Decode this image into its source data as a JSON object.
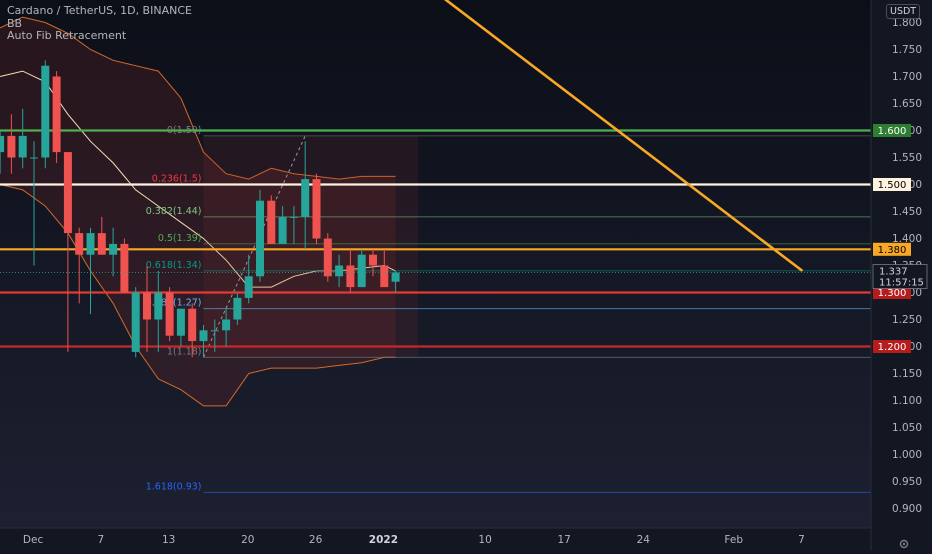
{
  "header": {
    "symbol_line": "Cardano / TetherUS, 1D, BINANCE",
    "indicator1": "BB",
    "indicator2": "Auto Fib Retracement"
  },
  "price_axis": {
    "unit": "USDT",
    "ticks": [
      "1.800",
      "1.750",
      "1.700",
      "1.650",
      "1.600",
      "1.550",
      "1.500",
      "1.450",
      "1.400",
      "1.350",
      "1.300",
      "1.250",
      "1.200",
      "1.150",
      "1.100",
      "1.050",
      "1.000",
      "0.950",
      "0.900"
    ]
  },
  "badges": [
    {
      "id": "b1600",
      "value": 1.6,
      "label": "1.600",
      "bg": "#2e7d32",
      "fg": "#ffffff"
    },
    {
      "id": "b1500",
      "value": 1.5,
      "label": "1.500",
      "bg": "#fff3e0",
      "fg": "#000000"
    },
    {
      "id": "b1380",
      "value": 1.38,
      "label": "1.380",
      "bg": "#f9a825",
      "fg": "#000000"
    },
    {
      "id": "b1300",
      "value": 1.3,
      "label": "1.300",
      "bg": "#b71c1c",
      "fg": "#ffffff"
    },
    {
      "id": "b1200",
      "value": 1.2,
      "label": "1.200",
      "bg": "#b71c1c",
      "fg": "#ffffff"
    }
  ],
  "current_price": {
    "value": 1.337,
    "label": "1.337",
    "countdown": "11:57:15"
  },
  "time_axis": {
    "labels": [
      {
        "text": "Dec",
        "day": 1,
        "bold": false
      },
      {
        "text": "7",
        "day": 7,
        "bold": false
      },
      {
        "text": "13",
        "day": 13,
        "bold": false
      },
      {
        "text": "20",
        "day": 20,
        "bold": false
      },
      {
        "text": "26",
        "day": 26,
        "bold": false
      },
      {
        "text": "2022",
        "day": 32,
        "bold": true
      },
      {
        "text": "10",
        "day": 41,
        "bold": false
      },
      {
        "text": "17",
        "day": 48,
        "bold": false
      },
      {
        "text": "24",
        "day": 55,
        "bold": false
      },
      {
        "text": "Feb",
        "day": 63,
        "bold": false
      },
      {
        "text": "7",
        "day": 69,
        "bold": false
      }
    ]
  },
  "fib_levels": [
    {
      "label": "0(1.59)",
      "value": 1.59,
      "color": "#787b86"
    },
    {
      "label": "0.236(1.5)",
      "value": 1.5,
      "color": "#f23645"
    },
    {
      "label": "0.382(1.44)",
      "value": 1.44,
      "color": "#81c784"
    },
    {
      "label": "0.5(1.39)",
      "value": 1.39,
      "color": "#4caf50"
    },
    {
      "label": "0.618(1.34)",
      "value": 1.34,
      "color": "#089981"
    },
    {
      "label": "0.786(1.27)",
      "value": 1.27,
      "color": "#64b5f6"
    },
    {
      "label": "1(1.18)",
      "value": 1.18,
      "color": "#787b86"
    },
    {
      "label": "1.618(0.93)",
      "value": 0.93,
      "color": "#2962ff"
    }
  ],
  "horizontal_lines": [
    {
      "value": 1.6,
      "color": "#4caf50"
    },
    {
      "value": 1.5,
      "color": "#fff3e0"
    },
    {
      "value": 1.38,
      "color": "#f9a825"
    },
    {
      "value": 1.3,
      "color": "#e53935"
    },
    {
      "value": 1.2,
      "color": "#c62828"
    }
  ],
  "trendline": {
    "x1": 28,
    "y1": 2.04,
    "x2": 72,
    "y2": 1.34,
    "color": "#f9a825"
  },
  "colors": {
    "up": "#26a69a",
    "down": "#ef5350",
    "bb_band": "#d46a2a",
    "bb_basis": "#f5deb3"
  },
  "chart_data": {
    "type": "candlestick",
    "title": "Cardano / TetherUS, 1D, BINANCE",
    "unit": "USDT",
    "ylim": [
      0.875,
      1.825
    ],
    "x_unit": "day index (1 = Dec 1, 2021)",
    "xlim": [
      1,
      72
    ],
    "candles": [
      {
        "day": 1,
        "o": 1.56,
        "h": 1.6,
        "l": 1.52,
        "c": 1.59
      },
      {
        "day": 2,
        "o": 1.59,
        "h": 1.63,
        "l": 1.52,
        "c": 1.55
      },
      {
        "day": 3,
        "o": 1.55,
        "h": 1.64,
        "l": 1.53,
        "c": 1.59
      },
      {
        "day": 4,
        "o": 1.55,
        "h": 1.58,
        "l": 1.35,
        "c": 1.55
      },
      {
        "day": 5,
        "o": 1.55,
        "h": 1.73,
        "l": 1.53,
        "c": 1.72
      },
      {
        "day": 6,
        "o": 1.7,
        "h": 1.71,
        "l": 1.54,
        "c": 1.56
      },
      {
        "day": 7,
        "o": 1.56,
        "h": 1.56,
        "l": 1.19,
        "c": 1.41
      },
      {
        "day": 8,
        "o": 1.41,
        "h": 1.42,
        "l": 1.28,
        "c": 1.37
      },
      {
        "day": 9,
        "o": 1.37,
        "h": 1.42,
        "l": 1.26,
        "c": 1.41
      },
      {
        "day": 10,
        "o": 1.41,
        "h": 1.44,
        "l": 1.37,
        "c": 1.37
      },
      {
        "day": 11,
        "o": 1.37,
        "h": 1.42,
        "l": 1.33,
        "c": 1.39
      },
      {
        "day": 12,
        "o": 1.39,
        "h": 1.4,
        "l": 1.3,
        "c": 1.3
      },
      {
        "day": 13,
        "o": 1.19,
        "h": 1.31,
        "l": 1.18,
        "c": 1.3
      },
      {
        "day": 14,
        "o": 1.3,
        "h": 1.35,
        "l": 1.19,
        "c": 1.25
      },
      {
        "day": 15,
        "o": 1.25,
        "h": 1.34,
        "l": 1.19,
        "c": 1.3
      },
      {
        "day": 16,
        "o": 1.3,
        "h": 1.31,
        "l": 1.21,
        "c": 1.22
      },
      {
        "day": 17,
        "o": 1.22,
        "h": 1.27,
        "l": 1.2,
        "c": 1.27
      },
      {
        "day": 18,
        "o": 1.27,
        "h": 1.28,
        "l": 1.18,
        "c": 1.21
      },
      {
        "day": 19,
        "o": 1.21,
        "h": 1.24,
        "l": 1.18,
        "c": 1.23
      },
      {
        "day": 20,
        "o": 1.23,
        "h": 1.25,
        "l": 1.19,
        "c": 1.23
      },
      {
        "day": 21,
        "o": 1.23,
        "h": 1.27,
        "l": 1.2,
        "c": 1.25
      },
      {
        "day": 22,
        "o": 1.25,
        "h": 1.3,
        "l": 1.24,
        "c": 1.29
      },
      {
        "day": 23,
        "o": 1.29,
        "h": 1.37,
        "l": 1.28,
        "c": 1.33
      },
      {
        "day": 24,
        "o": 1.33,
        "h": 1.49,
        "l": 1.32,
        "c": 1.47
      },
      {
        "day": 25,
        "o": 1.47,
        "h": 1.48,
        "l": 1.39,
        "c": 1.39
      },
      {
        "day": 26,
        "o": 1.39,
        "h": 1.46,
        "l": 1.39,
        "c": 1.44
      },
      {
        "day": 27,
        "o": 1.44,
        "h": 1.46,
        "l": 1.39,
        "c": 1.44
      },
      {
        "day": 28,
        "o": 1.44,
        "h": 1.58,
        "l": 1.38,
        "c": 1.51
      },
      {
        "day": 29,
        "o": 1.51,
        "h": 1.52,
        "l": 1.39,
        "c": 1.4
      },
      {
        "day": 30,
        "o": 1.4,
        "h": 1.41,
        "l": 1.32,
        "c": 1.33
      },
      {
        "day": 31,
        "o": 1.33,
        "h": 1.37,
        "l": 1.31,
        "c": 1.35
      },
      {
        "day": 32,
        "o": 1.35,
        "h": 1.38,
        "l": 1.3,
        "c": 1.31
      },
      {
        "day": 33,
        "o": 1.31,
        "h": 1.38,
        "l": 1.31,
        "c": 1.37
      },
      {
        "day": 34,
        "o": 1.37,
        "h": 1.38,
        "l": 1.33,
        "c": 1.35
      },
      {
        "day": 35,
        "o": 1.35,
        "h": 1.38,
        "l": 1.31,
        "c": 1.31
      },
      {
        "day": 36,
        "o": 1.32,
        "h": 1.34,
        "l": 1.3,
        "c": 1.337
      }
    ],
    "bollinger": {
      "days": [
        1,
        3,
        5,
        7,
        9,
        11,
        13,
        15,
        17,
        19,
        21,
        23,
        25,
        27,
        29,
        31,
        33,
        35,
        36
      ],
      "upper": [
        1.79,
        1.81,
        1.8,
        1.78,
        1.75,
        1.73,
        1.72,
        1.71,
        1.66,
        1.56,
        1.52,
        1.51,
        1.53,
        1.52,
        1.515,
        1.51,
        1.515,
        1.515,
        1.515
      ],
      "basis": [
        1.7,
        1.71,
        1.69,
        1.63,
        1.58,
        1.54,
        1.49,
        1.46,
        1.43,
        1.4,
        1.36,
        1.31,
        1.31,
        1.33,
        1.34,
        1.34,
        1.345,
        1.35,
        1.34
      ],
      "lower": [
        1.5,
        1.49,
        1.46,
        1.41,
        1.34,
        1.28,
        1.2,
        1.14,
        1.12,
        1.09,
        1.09,
        1.15,
        1.16,
        1.16,
        1.16,
        1.165,
        1.17,
        1.18,
        1.18
      ]
    }
  }
}
